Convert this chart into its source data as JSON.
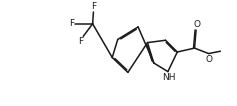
{
  "background": "#ffffff",
  "bond_color": "#1a1a1a",
  "bond_lw": 1.1,
  "text_color": "#1a1a1a",
  "font_size": 6.5,
  "fig_w": 2.37,
  "fig_h": 1.06,
  "dpi": 100,
  "xlim": [
    -2.5,
    11.0
  ],
  "ylim": [
    -1.0,
    5.5
  ]
}
